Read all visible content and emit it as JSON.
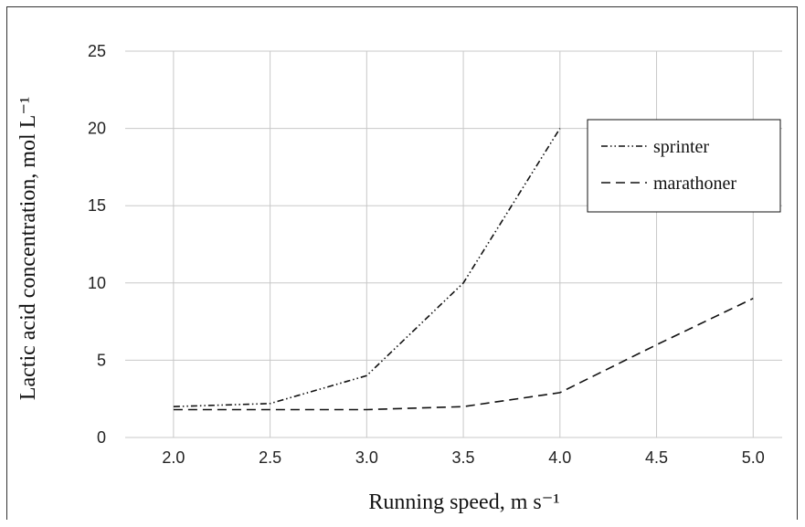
{
  "chart_data": {
    "type": "line",
    "xlabel": "Running speed, m s⁻¹",
    "ylabel": "Lactic acid concentration, mol L⁻¹",
    "xlim": [
      1.75,
      5.15
    ],
    "ylim": [
      0,
      25
    ],
    "xticks": [
      "2.0",
      "2.5",
      "3.0",
      "3.5",
      "4.0",
      "4.5",
      "5.0"
    ],
    "yticks": [
      "0",
      "5",
      "10",
      "15",
      "20",
      "25"
    ],
    "grid": true,
    "legend_position": "upper-right",
    "series": [
      {
        "name": "sprinter",
        "style": "dash-dot-dot",
        "color": "#111111",
        "x": [
          2.0,
          2.5,
          3.0,
          3.5,
          4.0
        ],
        "y": [
          2.0,
          2.2,
          4.0,
          10.0,
          20.0
        ]
      },
      {
        "name": "marathoner",
        "style": "dashed",
        "color": "#111111",
        "x": [
          2.0,
          2.5,
          3.0,
          3.5,
          4.0,
          4.5,
          5.0
        ],
        "y": [
          1.8,
          1.8,
          1.8,
          2.0,
          2.9,
          6.0,
          9.0
        ]
      }
    ]
  }
}
